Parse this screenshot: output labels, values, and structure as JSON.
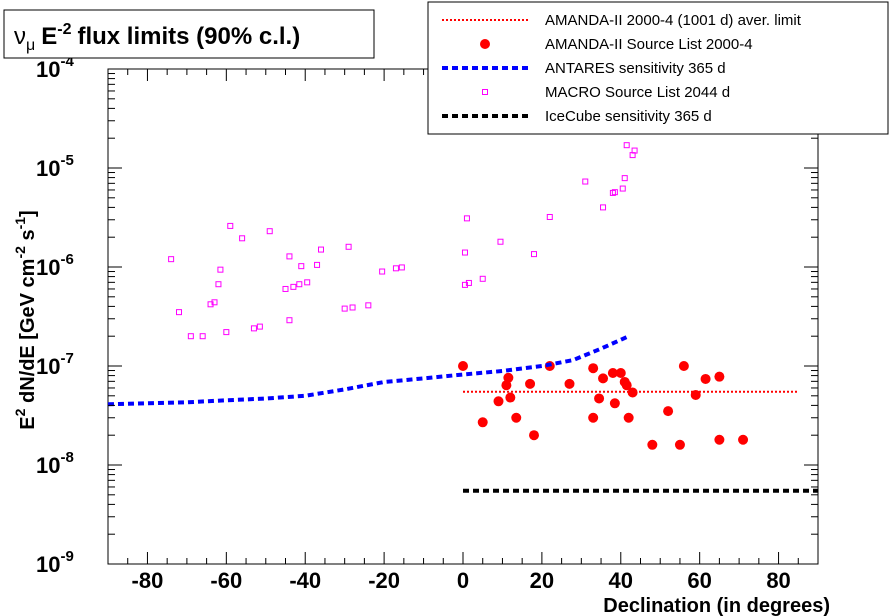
{
  "chart_data": {
    "type": "scatter",
    "title_main": "E",
    "title_exp": "-2",
    "title_rest": "flux limits (90% c.l.)",
    "title_nu": "ν",
    "title_mu": "μ",
    "xlabel": "Declination (in degrees)",
    "ylabel_parts": [
      "E",
      "2",
      " dN/dE [GeV cm",
      "-2",
      " s",
      "-1",
      "]"
    ],
    "x_range": [
      -90,
      90
    ],
    "y_range": [
      1e-09,
      0.0001
    ],
    "y_scale": "log",
    "x_ticks": [
      -80,
      -60,
      -40,
      -20,
      0,
      20,
      40,
      60,
      80
    ],
    "y_ticks": [
      {
        "value": 1e-09,
        "base": "10",
        "exp": "-9"
      },
      {
        "value": 1e-08,
        "base": "10",
        "exp": "-8"
      },
      {
        "value": 1e-07,
        "base": "10",
        "exp": "-7"
      },
      {
        "value": 1e-06,
        "base": "10",
        "exp": "-6"
      },
      {
        "value": 1e-05,
        "base": "10",
        "exp": "-5"
      },
      {
        "value": 0.0001,
        "base": "10",
        "exp": "-4"
      }
    ],
    "legend_position": "top-right",
    "series": [
      {
        "name": "AMANDA-II 2000-4 (1001 d) aver. limit",
        "kind": "line",
        "style": "dotted",
        "color": "#ff0000",
        "points": [
          [
            0,
            5.5e-08
          ],
          [
            85,
            5.5e-08
          ]
        ]
      },
      {
        "name": "AMANDA-II Source List 2000-4",
        "kind": "marker",
        "marker": "filled-circle",
        "color": "#ff0000",
        "points": [
          [
            0,
            1e-07
          ],
          [
            5,
            2.7e-08
          ],
          [
            9,
            4.4e-08
          ],
          [
            11,
            6.4e-08
          ],
          [
            11.5,
            7.6e-08
          ],
          [
            12,
            4.8e-08
          ],
          [
            13.5,
            3e-08
          ],
          [
            17,
            6.6e-08
          ],
          [
            18,
            2e-08
          ],
          [
            22,
            1e-07
          ],
          [
            27,
            6.6e-08
          ],
          [
            33,
            9.5e-08
          ],
          [
            33,
            3e-08
          ],
          [
            34.5,
            4.7e-08
          ],
          [
            35.5,
            7.5e-08
          ],
          [
            38,
            8.5e-08
          ],
          [
            38.5,
            4.2e-08
          ],
          [
            40,
            8.5e-08
          ],
          [
            41,
            6.9e-08
          ],
          [
            41.5,
            6.4e-08
          ],
          [
            42,
            3e-08
          ],
          [
            43,
            5.4e-08
          ],
          [
            48,
            1.6e-08
          ],
          [
            52,
            3.5e-08
          ],
          [
            55,
            1.6e-08
          ],
          [
            56,
            1e-07
          ],
          [
            59,
            5.1e-08
          ],
          [
            61.5,
            7.4e-08
          ],
          [
            65,
            7.8e-08
          ],
          [
            65,
            1.8e-08
          ],
          [
            71,
            1.8e-08
          ]
        ]
      },
      {
        "name": "ANTARES sensitivity 365 d",
        "kind": "line",
        "style": "dashed",
        "color": "#0000ff",
        "points": [
          [
            -90,
            4.1e-08
          ],
          [
            -80,
            4.2e-08
          ],
          [
            -70,
            4.3e-08
          ],
          [
            -60,
            4.5e-08
          ],
          [
            -50,
            4.7e-08
          ],
          [
            -40,
            5e-08
          ],
          [
            -30,
            5.8e-08
          ],
          [
            -20,
            6.9e-08
          ],
          [
            -10,
            7.5e-08
          ],
          [
            0,
            8.2e-08
          ],
          [
            10,
            8.9e-08
          ],
          [
            20,
            1e-07
          ],
          [
            28,
            1.15e-07
          ],
          [
            35,
            1.5e-07
          ],
          [
            42,
            2e-07
          ]
        ]
      },
      {
        "name": "MACRO Source List 2044 d",
        "kind": "marker",
        "marker": "open-square",
        "color": "#ff00ff",
        "points": [
          [
            -74,
            1.2e-06
          ],
          [
            -72,
            3.5e-07
          ],
          [
            -69,
            2e-07
          ],
          [
            -66,
            2e-07
          ],
          [
            -64,
            4.2e-07
          ],
          [
            -63,
            4.4e-07
          ],
          [
            -62,
            6.7e-07
          ],
          [
            -61.5,
            9.4e-07
          ],
          [
            -60,
            2.2e-07
          ],
          [
            -59,
            2.6e-06
          ],
          [
            -56,
            1.95e-06
          ],
          [
            -53,
            2.4e-07
          ],
          [
            -51.5,
            2.5e-07
          ],
          [
            -49,
            2.3e-06
          ],
          [
            -45,
            6e-07
          ],
          [
            -44,
            2.9e-07
          ],
          [
            -44,
            1.28e-06
          ],
          [
            -43,
            6.3e-07
          ],
          [
            -41.5,
            6.7e-07
          ],
          [
            -41,
            1.02e-06
          ],
          [
            -39.5,
            7e-07
          ],
          [
            -37,
            1.05e-06
          ],
          [
            -36,
            1.5e-06
          ],
          [
            -30,
            3.8e-07
          ],
          [
            -28,
            3.9e-07
          ],
          [
            -29,
            1.6e-06
          ],
          [
            -24,
            4.1e-07
          ],
          [
            -20.5,
            9e-07
          ],
          [
            -17,
            9.7e-07
          ],
          [
            -15.5,
            9.9e-07
          ],
          [
            0.5,
            6.6e-07
          ],
          [
            1.5,
            6.9e-07
          ],
          [
            0.5,
            1.4e-06
          ],
          [
            1,
            3.1e-06
          ],
          [
            5,
            7.6e-07
          ],
          [
            9.5,
            1.8e-06
          ],
          [
            18,
            1.35e-06
          ],
          [
            22,
            3.2e-06
          ],
          [
            31,
            7.3e-06
          ],
          [
            35.5,
            4e-06
          ],
          [
            38,
            5.6e-06
          ],
          [
            38.5,
            5.7e-06
          ],
          [
            40.5,
            6.2e-06
          ],
          [
            41,
            7.9e-06
          ],
          [
            41.5,
            1.7e-05
          ],
          [
            43,
            1.35e-05
          ],
          [
            43.5,
            1.5e-05
          ]
        ]
      },
      {
        "name": "IceCube sensitivity 365 d",
        "kind": "line",
        "style": "dashed",
        "color": "#000000",
        "points": [
          [
            0,
            5.5e-09
          ],
          [
            90,
            5.5e-09
          ]
        ]
      }
    ]
  }
}
